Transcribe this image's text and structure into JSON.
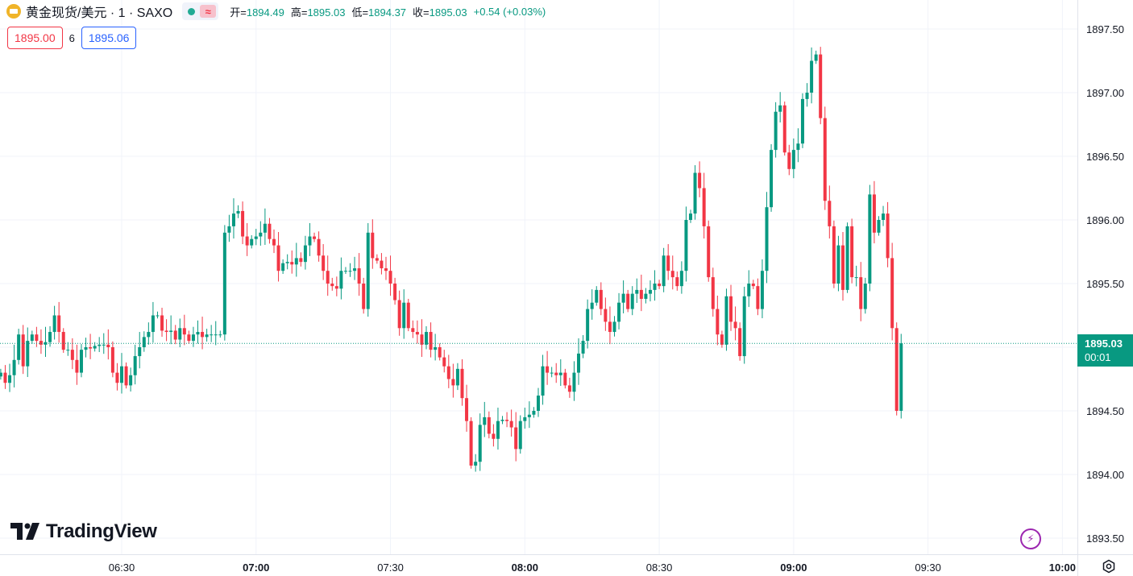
{
  "header": {
    "symbol_title": "黄金现货/美元 · 1 · SAXO",
    "ohlc": [
      {
        "label": "开=",
        "value": "1894.49"
      },
      {
        "label": "高=",
        "value": "1895.03"
      },
      {
        "label": "低=",
        "value": "1894.37"
      },
      {
        "label": "收=",
        "value": "1895.03"
      }
    ],
    "change": "+0.54 (+0.03%)",
    "bid": "1895.00",
    "spread": "6",
    "ask": "1895.06"
  },
  "last_price": {
    "price": "1895.03",
    "countdown": "00:01"
  },
  "branding": {
    "logo_text": "TradingView"
  },
  "icons": {
    "symbol": "gold-coin-icon",
    "status": "market-open-icon",
    "wave": "approx-icon",
    "bolt": "lightning-icon",
    "settings": "settings-gear-icon"
  },
  "colors": {
    "up": "#089981",
    "down": "#f23645",
    "bid": "#f23645",
    "ask": "#2962ff",
    "grid": "#f0f3fa"
  },
  "chart_data": {
    "type": "candlestick",
    "interval_minutes": 1,
    "ylim": [
      1893.5,
      1897.6
    ],
    "y_ticks": [
      "1893.50",
      "1894.00",
      "1894.50",
      "1895.00",
      "1895.50",
      "1896.00",
      "1896.50",
      "1897.00",
      "1897.50"
    ],
    "x_ticks": [
      {
        "label": "06:30",
        "time": "06:30",
        "bold": false
      },
      {
        "label": "07:00",
        "time": "07:00",
        "bold": true
      },
      {
        "label": "07:30",
        "time": "07:30",
        "bold": false
      },
      {
        "label": "08:00",
        "time": "08:00",
        "bold": true
      },
      {
        "label": "08:30",
        "time": "08:30",
        "bold": false
      },
      {
        "label": "09:00",
        "time": "09:00",
        "bold": true
      },
      {
        "label": "09:30",
        "time": "09:30",
        "bold": false
      },
      {
        "label": "10:00",
        "time": "10:00",
        "bold": true
      }
    ],
    "first_bar_time": "06:03",
    "last_price": 1895.03,
    "closes": [
      1894.8,
      1894.72,
      1894.78,
      1894.9,
      1895.1,
      1894.85,
      1895.05,
      1895.1,
      1895.05,
      1895.02,
      1895.04,
      1895.12,
      1895.25,
      1895.12,
      1894.98,
      1894.98,
      1894.9,
      1894.8,
      1894.98,
      1895.0,
      1894.99,
      1895.01,
      1895.02,
      1895.02,
      1895.0,
      1894.8,
      1894.72,
      1894.85,
      1894.7,
      1894.78,
      1894.93,
      1895.0,
      1895.08,
      1895.12,
      1895.25,
      1895.25,
      1895.13,
      1895.12,
      1895.13,
      1895.06,
      1895.15,
      1895.1,
      1895.05,
      1895.1,
      1895.12,
      1895.08,
      1895.1,
      1895.1,
      1895.1,
      1895.1,
      1895.9,
      1895.95,
      1896.05,
      1896.07,
      1895.87,
      1895.8,
      1895.85,
      1895.87,
      1895.9,
      1895.97,
      1895.85,
      1895.8,
      1895.6,
      1895.66,
      1895.67,
      1895.65,
      1895.7,
      1895.67,
      1895.8,
      1895.87,
      1895.85,
      1895.72,
      1895.6,
      1895.5,
      1895.48,
      1895.46,
      1895.6,
      1895.6,
      1895.6,
      1895.62,
      1895.5,
      1895.3,
      1895.9,
      1895.7,
      1895.68,
      1895.62,
      1895.6,
      1895.5,
      1895.37,
      1895.15,
      1895.35,
      1895.15,
      1895.12,
      1895.1,
      1895.02,
      1895.12,
      1894.98,
      1895.0,
      1894.92,
      1894.85,
      1894.75,
      1894.7,
      1894.83,
      1894.6,
      1894.42,
      1894.07,
      1894.1,
      1894.39,
      1894.45,
      1894.32,
      1894.28,
      1894.42,
      1894.43,
      1894.42,
      1894.37,
      1894.2,
      1894.42,
      1894.45,
      1894.47,
      1894.5,
      1894.62,
      1894.85,
      1894.8,
      1894.8,
      1894.78,
      1894.8,
      1894.7,
      1894.65,
      1894.8,
      1894.95,
      1895.05,
      1895.3,
      1895.35,
      1895.45,
      1895.3,
      1895.2,
      1895.12,
      1895.2,
      1895.35,
      1895.42,
      1895.3,
      1895.42,
      1895.45,
      1895.38,
      1895.42,
      1895.45,
      1895.5,
      1895.48,
      1895.72,
      1895.6,
      1895.55,
      1895.48,
      1895.6,
      1896.0,
      1896.05,
      1896.37,
      1896.25,
      1895.95,
      1895.55,
      1895.3,
      1895.1,
      1895.02,
      1895.4,
      1895.2,
      1895.15,
      1894.93,
      1895.4,
      1895.5,
      1895.48,
      1895.3,
      1895.6,
      1896.1,
      1896.55,
      1896.85,
      1896.9,
      1896.53,
      1896.4,
      1896.55,
      1896.6,
      1896.95,
      1897.0,
      1897.25,
      1897.3,
      1896.8,
      1896.15,
      1895.95,
      1895.5,
      1895.8,
      1895.45,
      1895.95,
      1895.55,
      1895.55,
      1895.3,
      1895.5,
      1896.2,
      1895.9,
      1896.0,
      1896.05,
      1895.7,
      1895.15,
      1894.5,
      1895.03
    ]
  }
}
